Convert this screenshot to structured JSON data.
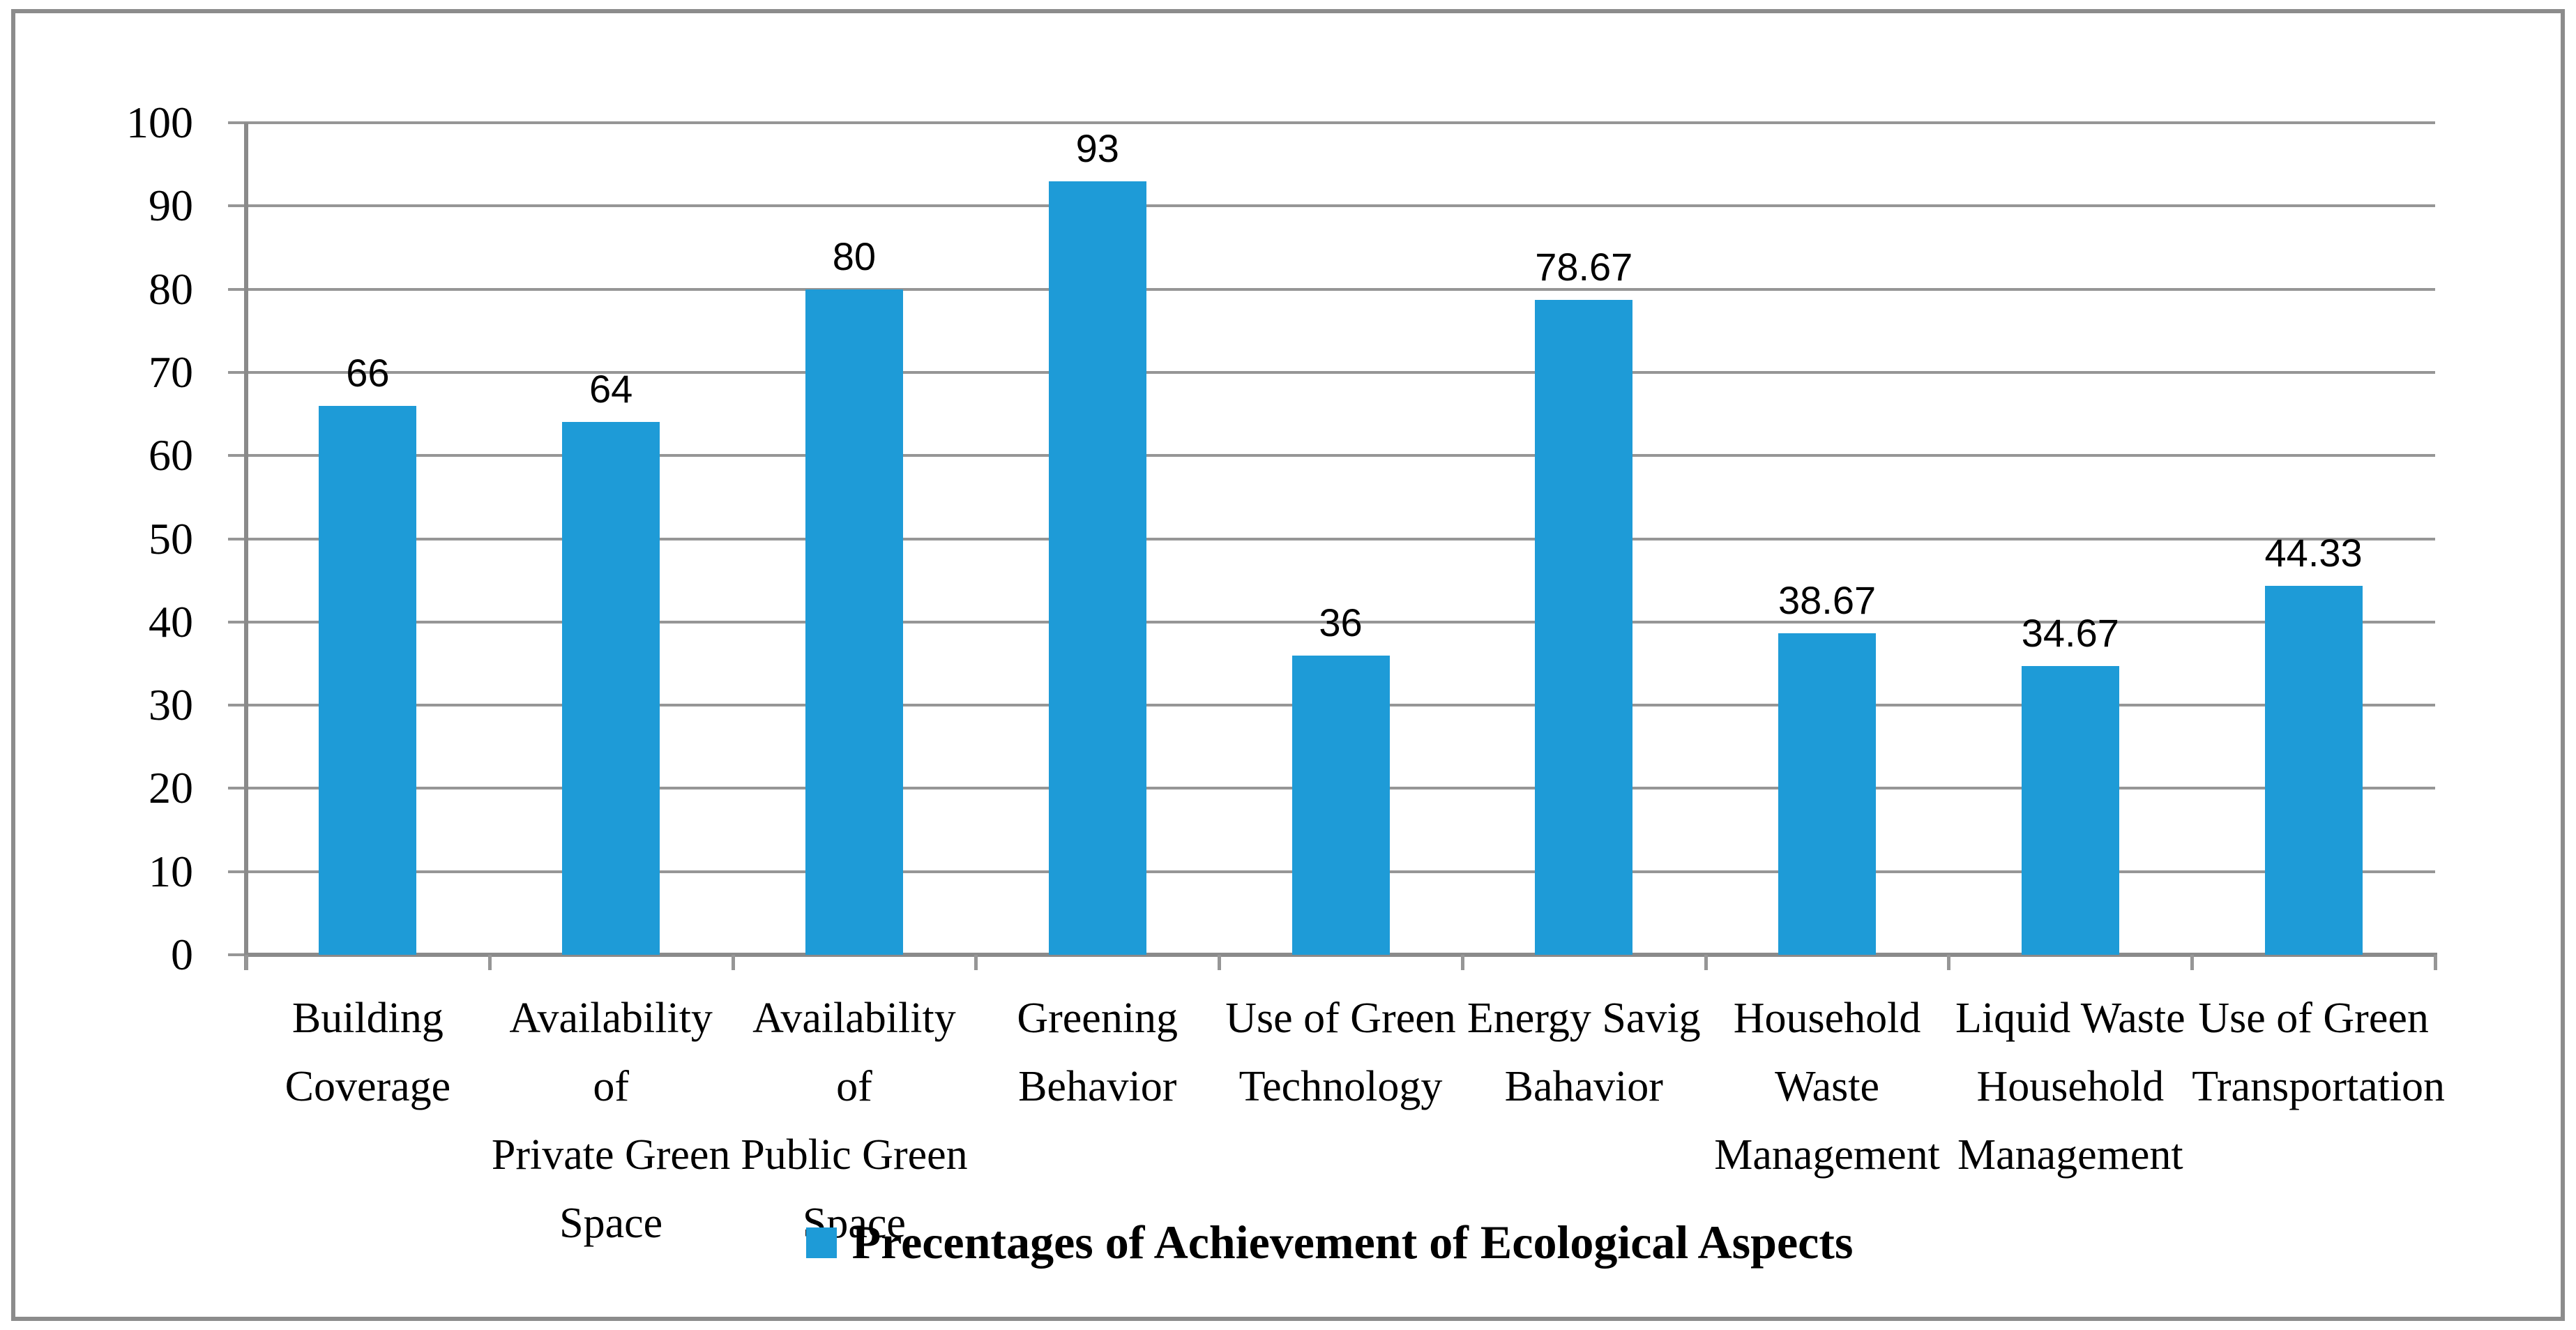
{
  "chart_data": {
    "type": "bar",
    "title": "",
    "categories": [
      "Building\nCoverage",
      "Availability of\nPrivate Green\nSpace",
      "Availability of\nPublic Green\nSpace",
      "Greening\nBehavior",
      "Use of Green\nTechnology",
      "Energy Savig\nBahavior",
      "Household\nWaste\nManagement",
      "Liquid Waste\nHousehold\nManagement",
      "Use of Green\nTransportation"
    ],
    "values": [
      66,
      64,
      80,
      93,
      36,
      78.67,
      38.67,
      34.67,
      44.33
    ],
    "value_labels": [
      "66",
      "64",
      "80",
      "93",
      "36",
      "78.67",
      "38.67",
      "34.67",
      "44.33"
    ],
    "ylim": [
      0,
      100
    ],
    "yticks": [
      0,
      10,
      20,
      30,
      40,
      50,
      60,
      70,
      80,
      90,
      100
    ],
    "ytick_labels": [
      "0",
      "10",
      "20",
      "30",
      "40",
      "50",
      "60",
      "70",
      "80",
      "90",
      "100"
    ],
    "grid": true,
    "legend": {
      "position": "bottom",
      "label": "Precentages of Achievement of Ecological Aspects"
    },
    "colors": {
      "bar": "#1e9bd7",
      "gridline": "#969696",
      "axis": "#8a8a8a",
      "border": "#8c8c8c",
      "text": "#000000"
    }
  }
}
